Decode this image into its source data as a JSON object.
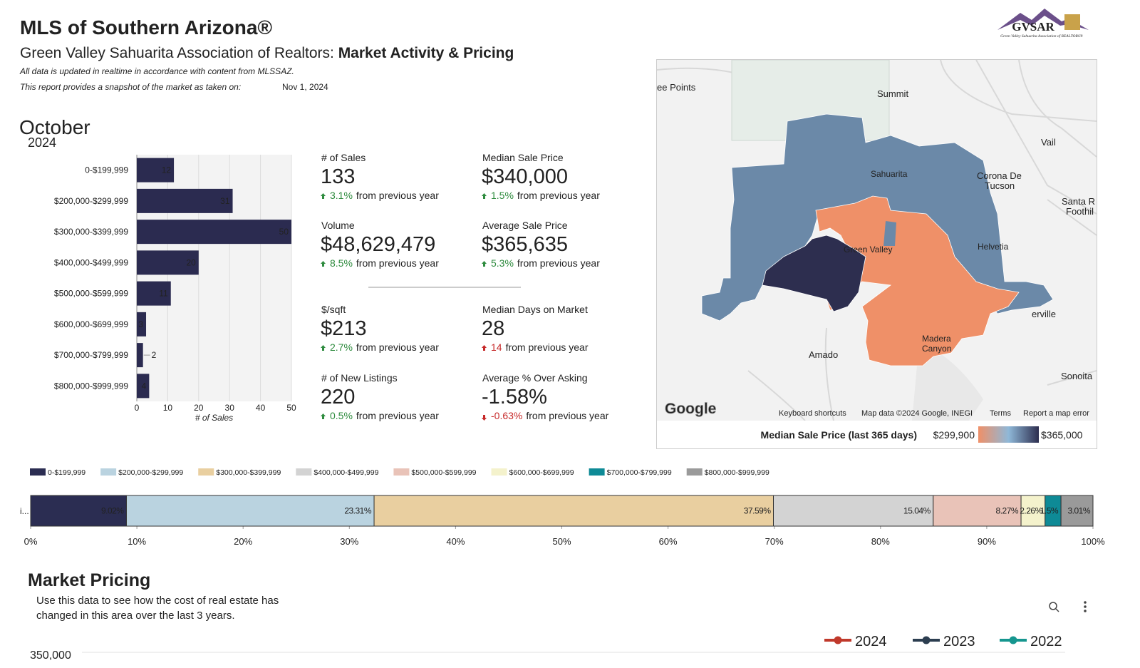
{
  "header": {
    "title": "MLS of Southern Arizona®",
    "subtitle": "Green Valley Sahuarita Association of Realtors: ",
    "subtitle_bold": "Market Activity & Pricing",
    "note": "All data is updated in realtime in accordance with content from MLSSAZ.",
    "snapshot_label": "This report provides a snapshot of the market as taken on:",
    "snapshot_date": "Nov 1, 2024",
    "logo": "GVSAR",
    "logo_caption": "Green Valley Sahuarita Association of REALTORS®",
    "month": "October",
    "year": "2024"
  },
  "kpis": [
    {
      "label": "# of Sales",
      "value": "133",
      "change": "3.1%",
      "note": "from previous year",
      "trend": "up",
      "color": "#2e8b3e"
    },
    {
      "label": "Median Sale Price",
      "value": "$340,000",
      "change": "1.5%",
      "note": "from previous year",
      "trend": "up",
      "color": "#2e8b3e"
    },
    {
      "label": "Volume",
      "value": "$48,629,479",
      "change": "8.5%",
      "note": "from previous year",
      "trend": "up",
      "color": "#2e8b3e"
    },
    {
      "label": "Average Sale Price",
      "value": "$365,635",
      "change": "5.3%",
      "note": "from previous year",
      "trend": "up",
      "color": "#2e8b3e"
    },
    {
      "label": "$/sqft",
      "value": "$213",
      "change": "2.7%",
      "note": "from previous year",
      "trend": "up",
      "color": "#2e8b3e"
    },
    {
      "label": "Median Days on Market",
      "value": "28",
      "change": "14",
      "note": "from previous year",
      "trend": "up",
      "color": "#c62828"
    },
    {
      "label": "# of New Listings",
      "value": "220",
      "change": "0.5%",
      "note": "from previous year",
      "trend": "up",
      "color": "#2e8b3e"
    },
    {
      "label": "Average % Over Asking",
      "value": "-1.58%",
      "change": "-0.63%",
      "note": "from previous year",
      "trend": "down",
      "color": "#c62828"
    }
  ],
  "map": {
    "labels": [
      "ee Points",
      "Summit",
      "Vail",
      "Corona De",
      "Tucson",
      "Santa R",
      "Foothil",
      "Sahuarita",
      "Helvetia",
      "Green Valley",
      "Amado",
      "erville",
      "Madera",
      "Canyon",
      "Sonoita"
    ],
    "logo": "Google",
    "attribution": [
      "Keyboard shortcuts",
      "Map data ©2024 Google, INEGI",
      "Terms",
      "Report a map error"
    ],
    "legend_title": "Median Sale Price (last 365 days)",
    "legend_min": "$299,900",
    "legend_max": "$365,000"
  },
  "chart_data": [
    {
      "type": "bar",
      "orientation": "horizontal",
      "categories": [
        "0-$199,999",
        "$200,000-$299,999",
        "$300,000-$399,999",
        "$400,000-$499,999",
        "$500,000-$599,999",
        "$600,000-$699,999",
        "$700,000-$799,999",
        "$800,000-$999,999"
      ],
      "values": [
        12,
        31,
        50,
        20,
        11,
        3,
        2,
        4
      ],
      "color": "#2b2b50",
      "xlabel": "# of Sales",
      "xlim": [
        0,
        50
      ],
      "xticks": [
        0,
        10,
        20,
        30,
        40,
        50
      ],
      "grid": true
    },
    {
      "type": "bar",
      "orientation": "horizontal",
      "stacked": true,
      "categories": [
        "i..."
      ],
      "series": [
        {
          "name": "0-$199,999",
          "color": "#2b2d52",
          "values": [
            9.02
          ],
          "value_labels": [
            "9.02%"
          ]
        },
        {
          "name": "$200,000-$299,999",
          "color": "#bad3e0",
          "values": [
            23.31
          ],
          "value_labels": [
            "23.31%"
          ]
        },
        {
          "name": "$300,000-$399,999",
          "color": "#e9cfa0",
          "values": [
            37.59
          ],
          "value_labels": [
            "37.59%"
          ]
        },
        {
          "name": "$400,000-$499,999",
          "color": "#d3d3d3",
          "values": [
            15.04
          ],
          "value_labels": [
            "15.04%"
          ]
        },
        {
          "name": "$500,000-$599,999",
          "color": "#e9c3b8",
          "values": [
            8.27
          ],
          "value_labels": [
            "8.27%"
          ]
        },
        {
          "name": "$600,000-$699,999",
          "color": "#f4f2cc",
          "values": [
            2.26
          ],
          "value_labels": [
            "2.26%"
          ]
        },
        {
          "name": "$700,000-$799,999",
          "color": "#0e8a96",
          "values": [
            1.5
          ],
          "value_labels": [
            "1.5%"
          ]
        },
        {
          "name": "$800,000-$999,999",
          "color": "#9a9a9a",
          "values": [
            3.01
          ],
          "value_labels": [
            "3.01%"
          ]
        }
      ],
      "xlim": [
        0,
        100
      ],
      "xticks": [
        {
          "value": 0,
          "label": "0%"
        },
        {
          "value": 10,
          "label": "10%"
        },
        {
          "value": 20,
          "label": "20%"
        },
        {
          "value": 30,
          "label": "30%"
        },
        {
          "value": 40,
          "label": "40%"
        },
        {
          "value": 50,
          "label": "50%"
        },
        {
          "value": 60,
          "label": "60%"
        },
        {
          "value": 70,
          "label": "70%"
        },
        {
          "value": 80,
          "label": "80%"
        },
        {
          "value": 90,
          "label": "90%"
        },
        {
          "value": 100,
          "label": "100%"
        }
      ]
    }
  ],
  "market_pricing": {
    "title": "Market Pricing",
    "description": [
      "Use this data to see how the cost of real estate has",
      "changed in this area over the last 3 years."
    ],
    "legend": [
      {
        "name": "2024",
        "color": "#c0392b"
      },
      {
        "name": "2023",
        "color": "#2c3e50"
      },
      {
        "name": "2022",
        "color": "#16968f"
      }
    ],
    "yticks": [
      {
        "value": 350000,
        "label": "350,000"
      }
    ]
  }
}
